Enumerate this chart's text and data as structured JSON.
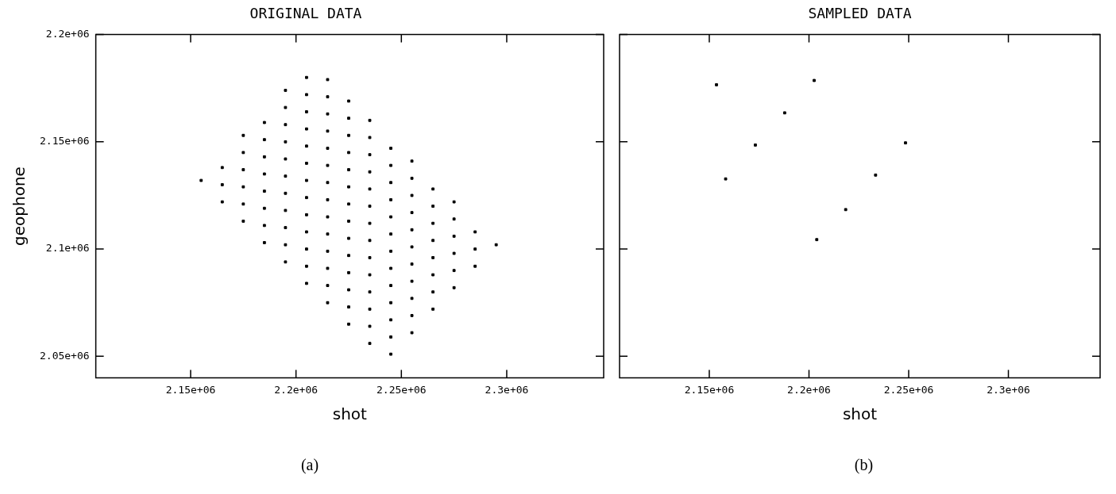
{
  "chart_data": [
    {
      "type": "scatter",
      "title": "ORIGINAL DATA",
      "xlabel": "shot",
      "ylabel": "geophone",
      "annotations": [
        "(a)"
      ],
      "xlim": [
        2105000,
        2346000
      ],
      "ylim": [
        2040000,
        2200000
      ],
      "xticks": [
        {
          "value": 2150000,
          "label": "2.15e+06"
        },
        {
          "value": 2200000,
          "label": "2.2e+06"
        },
        {
          "value": 2250000,
          "label": "2.25e+06"
        },
        {
          "value": 2300000,
          "label": "2.3e+06"
        }
      ],
      "yticks": [
        {
          "value": 2050000,
          "label": "2.05e+06"
        },
        {
          "value": 2100000,
          "label": "2.1e+06"
        },
        {
          "value": 2150000,
          "label": "2.15e+06"
        },
        {
          "value": 2200000,
          "label": "2.2e+06"
        }
      ],
      "grid": false,
      "legend": false,
      "marker": "square",
      "series": [
        {
          "color": "#000000",
          "x": [
            2155000,
            2165000,
            2165000,
            2165000,
            2175000,
            2175000,
            2175000,
            2175000,
            2175000,
            2175000,
            2185000,
            2185000,
            2185000,
            2185000,
            2185000,
            2185000,
            2185000,
            2185000,
            2195000,
            2195000,
            2195000,
            2195000,
            2195000,
            2195000,
            2195000,
            2195000,
            2195000,
            2195000,
            2195000,
            2205000,
            2205000,
            2205000,
            2205000,
            2205000,
            2205000,
            2205000,
            2205000,
            2205000,
            2205000,
            2205000,
            2205000,
            2205000,
            2215000,
            2215000,
            2215000,
            2215000,
            2215000,
            2215000,
            2215000,
            2215000,
            2215000,
            2215000,
            2215000,
            2215000,
            2215000,
            2215000,
            2225000,
            2225000,
            2225000,
            2225000,
            2225000,
            2225000,
            2225000,
            2225000,
            2225000,
            2225000,
            2225000,
            2225000,
            2225000,
            2225000,
            2235000,
            2235000,
            2235000,
            2235000,
            2235000,
            2235000,
            2235000,
            2235000,
            2235000,
            2235000,
            2235000,
            2235000,
            2235000,
            2235000,
            2245000,
            2245000,
            2245000,
            2245000,
            2245000,
            2245000,
            2245000,
            2245000,
            2245000,
            2245000,
            2245000,
            2245000,
            2245000,
            2255000,
            2255000,
            2255000,
            2255000,
            2255000,
            2255000,
            2255000,
            2255000,
            2255000,
            2255000,
            2255000,
            2265000,
            2265000,
            2265000,
            2265000,
            2265000,
            2265000,
            2265000,
            2265000,
            2275000,
            2275000,
            2275000,
            2275000,
            2275000,
            2275000,
            2285000,
            2285000,
            2285000,
            2295000
          ],
          "values": [
            2132000,
            2122000,
            2130000,
            2138000,
            2113000,
            2121000,
            2129000,
            2137000,
            2145000,
            2153000,
            2103000,
            2111000,
            2119000,
            2127000,
            2135000,
            2143000,
            2151000,
            2159000,
            2094000,
            2102000,
            2110000,
            2118000,
            2126000,
            2134000,
            2142000,
            2150000,
            2158000,
            2166000,
            2174000,
            2084000,
            2092000,
            2100000,
            2108000,
            2116000,
            2124000,
            2132000,
            2140000,
            2148000,
            2156000,
            2164000,
            2172000,
            2180000,
            2075000,
            2083000,
            2091000,
            2099000,
            2107000,
            2115000,
            2123000,
            2131000,
            2139000,
            2147000,
            2155000,
            2163000,
            2171000,
            2179000,
            2065000,
            2073000,
            2081000,
            2089000,
            2097000,
            2105000,
            2113000,
            2121000,
            2129000,
            2137000,
            2145000,
            2153000,
            2161000,
            2169000,
            2056000,
            2064000,
            2072000,
            2080000,
            2088000,
            2096000,
            2104000,
            2112000,
            2120000,
            2128000,
            2136000,
            2144000,
            2152000,
            2160000,
            2051000,
            2059000,
            2067000,
            2075000,
            2083000,
            2091000,
            2099000,
            2107000,
            2115000,
            2123000,
            2131000,
            2139000,
            2147000,
            2061000,
            2069000,
            2077000,
            2085000,
            2093000,
            2101000,
            2109000,
            2117000,
            2125000,
            2133000,
            2141000,
            2072000,
            2080000,
            2088000,
            2096000,
            2104000,
            2112000,
            2120000,
            2128000,
            2082000,
            2090000,
            2098000,
            2106000,
            2114000,
            2122000,
            2092000,
            2100000,
            2108000,
            2102000
          ]
        }
      ]
    },
    {
      "type": "scatter",
      "title": "SAMPLED DATA",
      "xlabel": "shot",
      "annotations": [
        "(b)"
      ],
      "tick_labels": "x",
      "xlim": [
        2105000,
        2346000
      ],
      "ylim": [
        2040000,
        2200000
      ],
      "xticks": [
        {
          "value": 2150000,
          "label": "2.15e+06"
        },
        {
          "value": 2200000,
          "label": "2.2e+06"
        },
        {
          "value": 2250000,
          "label": "2.25e+06"
        },
        {
          "value": 2300000,
          "label": "2.3e+06"
        }
      ],
      "yticks": [
        {
          "value": 2050000,
          "label": null
        },
        {
          "value": 2100000,
          "label": null
        },
        {
          "value": 2150000,
          "label": null
        },
        {
          "value": 2200000,
          "label": null
        }
      ],
      "grid": false,
      "legend": false,
      "marker": "square",
      "series": [
        {
          "color": "#000000",
          "x": [
            2153600,
            2158200,
            2173100,
            2187800,
            2202600,
            2203900,
            2218400,
            2233400,
            2248400
          ],
          "values": [
            2176600,
            2132700,
            2148500,
            2163500,
            2178600,
            2104400,
            2118400,
            2134500,
            2149500
          ]
        }
      ]
    }
  ]
}
